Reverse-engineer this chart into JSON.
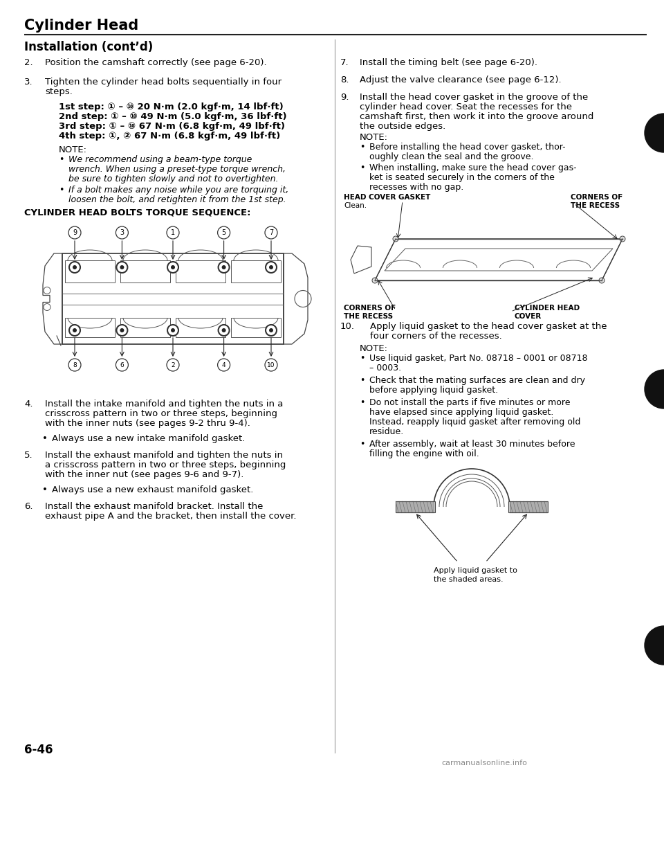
{
  "page_title": "Cylinder Head",
  "section_title": "Installation (cont’d)",
  "bg_color": "#ffffff",
  "text_color": "#000000",
  "page_number": "6-46",
  "watermark": "carmanualsonline.info",
  "left_col": {
    "item2": "Position the camshaft correctly (see page 6-20).",
    "item3_line1": "Tighten the cylinder head bolts sequentially in four",
    "item3_line2": "steps.",
    "step1": "1st step: ① – ⑩ 20 N·m (2.0 kgf·m, 14 lbf·ft)",
    "step2": "2nd step: ① – ⑩ 49 N·m (5.0 kgf·m, 36 lbf·ft)",
    "step3": "3rd step: ① – ⑩ 67 N·m (6.8 kgf·m, 49 lbf·ft)",
    "step4": "4th step: ①, ② 67 N·m (6.8 kgf·m, 49 lbf·ft)",
    "note_label": "NOTE:",
    "note1_line1": "We recommend using a beam-type torque",
    "note1_line2": "wrench. When using a preset-type torque wrench,",
    "note1_line3": "be sure to tighten slowly and not to overtighten.",
    "note2_line1": "If a bolt makes any noise while you are torquing it,",
    "note2_line2": "loosen the bolt, and retighten it from the 1st step.",
    "seq_title": "CYLINDER HEAD BOLTS TORQUE SEQUENCE:",
    "top_nums": [
      "9",
      "3",
      "1",
      "5",
      "7"
    ],
    "bot_nums": [
      "8",
      "6",
      "2",
      "4",
      "10"
    ],
    "item4_line1": "Install the intake manifold and tighten the nuts in a",
    "item4_line2": "crisscross pattern in two or three steps, beginning",
    "item4_line3": "with the inner nuts (see pages 9-2 thru 9-4).",
    "item4_bullet": "Always use a new intake manifold gasket.",
    "item5_line1": "Install the exhaust manifold and tighten the nuts in",
    "item5_line2": "a crisscross pattern in two or three steps, beginning",
    "item5_line3": "with the inner nut (see pages 9-6 and 9-7).",
    "item5_bullet": "Always use a new exhaust manifold gasket.",
    "item6_line1": "Install the exhaust manifold bracket. Install the",
    "item6_line2": "exhaust pipe A and the bracket, then install the cover."
  },
  "right_col": {
    "item7": "Install the timing belt (see page 6-20).",
    "item8": "Adjust the valve clearance (see page 6-12).",
    "item9_line1": "Install the head cover gasket in the groove of the",
    "item9_line2": "cylinder head cover. Seat the recesses for the",
    "item9_line3": "camshaft first, then work it into the groove around",
    "item9_line4": "the outside edges.",
    "note_label": "NOTE:",
    "note1_line1": "Before installing the head cover gasket, thor-",
    "note1_line2": "oughly clean the seal and the groove.",
    "note2_line1": "When installing, make sure the head cover gas-",
    "note2_line2": "ket is seated securely in the corners of the",
    "note2_line3": "recesses with no gap.",
    "label_hcg_1": "HEAD COVER GASKET",
    "label_hcg_2": "Clean.",
    "label_cor_1": "CORNERS OF",
    "label_cor_2": "THE RECESS",
    "label_cor2_1": "CORNERS OF",
    "label_cor2_2": "THE RECESS",
    "label_chc_1": "CYLINDER HEAD",
    "label_chc_2": "COVER",
    "item10_line1": "Apply liquid gasket to the head cover gasket at the",
    "item10_line2": "four corners of the recesses.",
    "note2_label": "NOTE:",
    "n2_1_line1": "Use liquid gasket, Part No. 08718 – 0001 or 08718",
    "n2_1_line2": "– 0003.",
    "n2_2_line1": "Check that the mating surfaces are clean and dry",
    "n2_2_line2": "before applying liquid gasket.",
    "n2_3_line1": "Do not install the parts if five minutes or more",
    "n2_3_line2": "have elapsed since applying liquid gasket.",
    "n2_3_line3": "Instead, reapply liquid gasket after removing old",
    "n2_3_line4": "residue.",
    "n2_4_line1": "After assembly, wait at least 30 minutes before",
    "n2_4_line2": "filling the engine with oil.",
    "apply_line1": "Apply liquid gasket to",
    "apply_line2": "the shaded areas."
  }
}
